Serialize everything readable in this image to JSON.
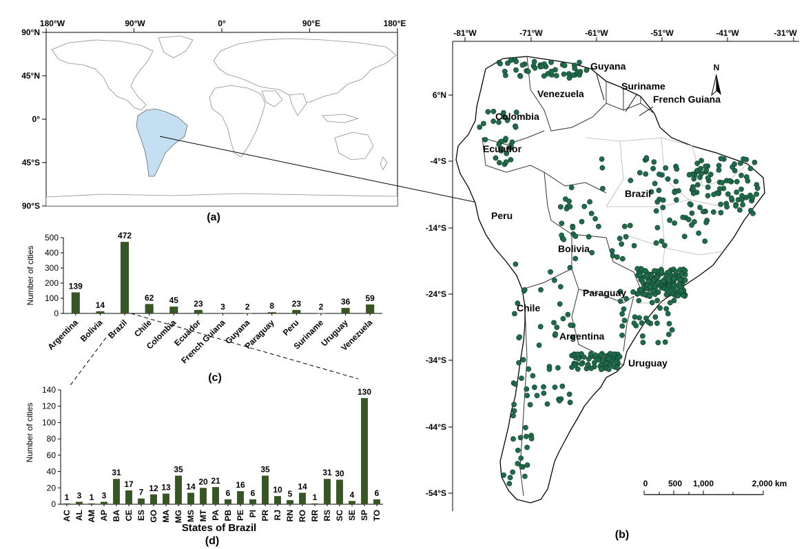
{
  "world_map": {
    "panel_label": "(a)",
    "lon_ticks": [
      "180°W",
      "90°W",
      "0°",
      "90°E",
      "180°E"
    ],
    "lat_ticks": [
      "90°N",
      "45°N",
      "0°",
      "45°S",
      "90°S"
    ]
  },
  "sa_map": {
    "panel_label": "(b)",
    "lon_ticks": [
      "-81°W",
      "-71°W",
      "-61°W",
      "-51°W",
      "-41°W",
      "-31°W"
    ],
    "lat_ticks": [
      "6°N",
      "-4°S",
      "-14°S",
      "-24°S",
      "-34°S",
      "-44°S",
      "-54°S"
    ],
    "north_label": "N",
    "scale_labels": [
      "0",
      "500",
      "1,000",
      "2,000 km"
    ],
    "country_labels": [
      "Guyana",
      "Suriname",
      "French Guiana",
      "Venezuela",
      "Colombia",
      "Ecuador",
      "Peru",
      "Brazil",
      "Bolivia",
      "Paraguay",
      "Chile",
      "Argentina",
      "Uruguay"
    ],
    "city_color": "#1f6b4a"
  },
  "chart_data": [
    {
      "type": "bar",
      "panel_label": "(c)",
      "title": "",
      "xlabel": "",
      "ylabel": "Number of cities",
      "ylim": [
        0,
        500
      ],
      "yticks": [
        0,
        100,
        200,
        300,
        400,
        500
      ],
      "categories": [
        "Argentina",
        "Bolivia",
        "Brazil",
        "Chile",
        "Colombia",
        "Ecuador",
        "French Guiana",
        "Guyana",
        "Paraguay",
        "Peru",
        "Suriname",
        "Uruguay",
        "Venezuela"
      ],
      "values": [
        139,
        14,
        472,
        62,
        45,
        23,
        3,
        2,
        8,
        23,
        2,
        36,
        59
      ],
      "bar_color": "#375623",
      "grid": false
    },
    {
      "type": "bar",
      "panel_label": "(d)",
      "title": "",
      "xlabel": "States of Brazil",
      "ylabel": "Number of cities",
      "ylim": [
        0,
        140
      ],
      "yticks": [
        0,
        20,
        40,
        60,
        80,
        100,
        120,
        140
      ],
      "categories": [
        "AC",
        "AL",
        "AM",
        "AP",
        "BA",
        "CE",
        "ES",
        "GO",
        "MA",
        "MG",
        "MS",
        "MT",
        "PA",
        "PB",
        "PE",
        "PI",
        "PR",
        "RJ",
        "RN",
        "RO",
        "RR",
        "RS",
        "SC",
        "SE",
        "SP",
        "TO"
      ],
      "values": [
        1,
        3,
        1,
        3,
        31,
        17,
        7,
        12,
        13,
        35,
        14,
        20,
        21,
        6,
        16,
        6,
        35,
        10,
        5,
        14,
        1,
        31,
        30,
        4,
        130,
        6
      ],
      "bar_color": "#375623",
      "grid": false
    }
  ]
}
